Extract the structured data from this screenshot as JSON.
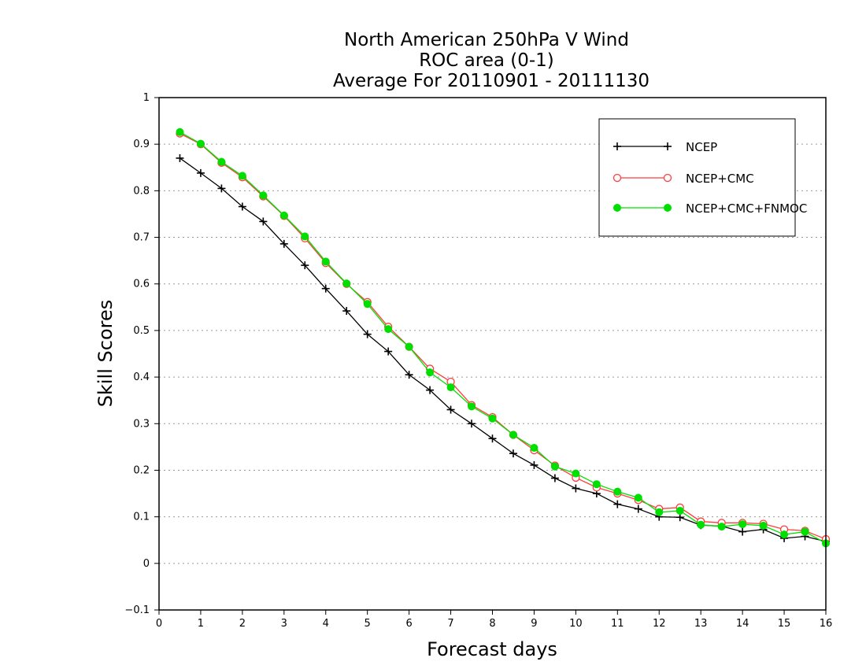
{
  "chart_data": {
    "type": "line",
    "title": [
      "North American 250hPa V Wind",
      "ROC area (0-1)",
      "Average For 20110901 - 20111130"
    ],
    "xlabel": "Forecast days",
    "ylabel": "Skill Scores",
    "xlim": [
      0,
      16
    ],
    "ylim": [
      -0.1,
      1
    ],
    "xticks": [
      "0",
      "1",
      "2",
      "3",
      "4",
      "5",
      "6",
      "7",
      "8",
      "9",
      "10",
      "11",
      "12",
      "13",
      "14",
      "15",
      "16"
    ],
    "yticks": [
      "−0.1",
      "0",
      "0.1",
      "0.2",
      "0.3",
      "0.4",
      "0.5",
      "0.6",
      "0.7",
      "0.8",
      "0.9",
      "1"
    ],
    "ytick_values": [
      -0.1,
      0,
      0.1,
      0.2,
      0.3,
      0.4,
      0.5,
      0.6,
      0.7,
      0.8,
      0.9,
      1
    ],
    "grid": "horizontal dotted",
    "legend_position": "top-right",
    "x": [
      0.5,
      1,
      1.5,
      2,
      2.5,
      3,
      3.5,
      4,
      4.5,
      5,
      5.5,
      6,
      6.5,
      7,
      7.5,
      8,
      8.5,
      9,
      9.5,
      10,
      10.5,
      11,
      11.5,
      12,
      12.5,
      13,
      13.5,
      14,
      14.5,
      15,
      15.5,
      16
    ],
    "series": [
      {
        "name": "NCEP",
        "color": "#000000",
        "marker": "plus",
        "values": [
          0.87,
          0.838,
          0.805,
          0.766,
          0.734,
          0.686,
          0.64,
          0.59,
          0.542,
          0.492,
          0.455,
          0.405,
          0.372,
          0.33,
          0.3,
          0.268,
          0.236,
          0.211,
          0.183,
          0.161,
          0.15,
          0.127,
          0.117,
          0.1,
          0.099,
          0.082,
          0.08,
          0.068,
          0.073,
          0.054,
          0.058,
          0.047
        ]
      },
      {
        "name": "NCEP+CMC",
        "color": "#ff3c3c",
        "marker": "open-circle",
        "values": [
          0.923,
          0.9,
          0.86,
          0.829,
          0.788,
          0.746,
          0.698,
          0.645,
          0.6,
          0.561,
          0.508,
          0.465,
          0.418,
          0.39,
          0.34,
          0.314,
          0.276,
          0.243,
          0.21,
          0.184,
          0.163,
          0.15,
          0.136,
          0.117,
          0.12,
          0.09,
          0.087,
          0.087,
          0.085,
          0.073,
          0.07,
          0.052
        ]
      },
      {
        "name": "NCEP+CMC+FNMOC",
        "color": "#00e000",
        "marker": "filled-circle",
        "values": [
          0.926,
          0.901,
          0.862,
          0.832,
          0.79,
          0.747,
          0.702,
          0.648,
          0.601,
          0.557,
          0.503,
          0.465,
          0.41,
          0.378,
          0.337,
          0.311,
          0.276,
          0.248,
          0.208,
          0.193,
          0.17,
          0.154,
          0.141,
          0.11,
          0.113,
          0.083,
          0.079,
          0.084,
          0.081,
          0.062,
          0.068,
          0.043
        ]
      }
    ]
  }
}
